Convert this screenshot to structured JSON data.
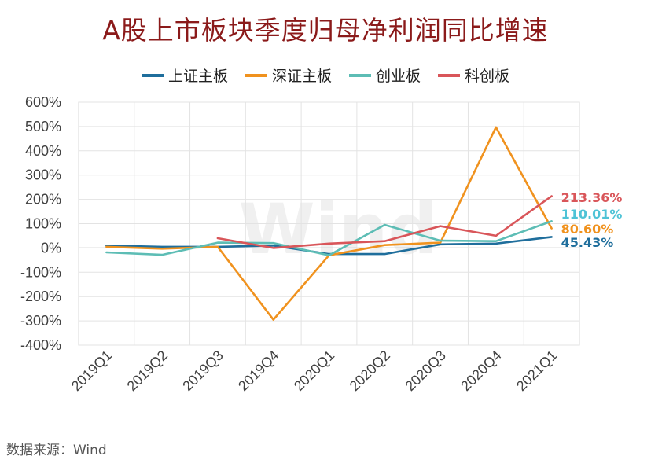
{
  "chart_data": {
    "type": "line",
    "title": "A股上市板块季度归母净利润同比增速",
    "source": "数据来源：Wind",
    "watermark": "Wind",
    "categories": [
      "2019Q1",
      "2019Q2",
      "2019Q3",
      "2019Q4",
      "2020Q1",
      "2020Q2",
      "2020Q3",
      "2020Q4",
      "2021Q1"
    ],
    "y_ticks": [
      "600%",
      "500%",
      "400%",
      "300%",
      "200%",
      "100%",
      "0%",
      "-100%",
      "-200%",
      "-300%",
      "-400%"
    ],
    "ylim": [
      -400,
      600
    ],
    "y_unit": "%",
    "grid": true,
    "legend_position": "top",
    "series": [
      {
        "name": "上证主板",
        "color": "#1f6e9c",
        "values": [
          10,
          5,
          5,
          10,
          -25,
          -25,
          15,
          18,
          45.43
        ],
        "end_label": "45.43%"
      },
      {
        "name": "深证主板",
        "color": "#f0921e",
        "values": [
          5,
          -3,
          5,
          -295,
          -30,
          12,
          22,
          497,
          80.6
        ],
        "end_label": "80.60%"
      },
      {
        "name": "创业板",
        "color": "#5dbdb5",
        "values": [
          -18,
          -28,
          22,
          20,
          -30,
          95,
          30,
          28,
          110.01
        ],
        "end_label": "110.01%"
      },
      {
        "name": "科创板",
        "color": "#d9565a",
        "values": [
          null,
          null,
          40,
          0,
          18,
          28,
          90,
          50,
          213.36
        ],
        "end_label": "213.36%"
      }
    ]
  }
}
